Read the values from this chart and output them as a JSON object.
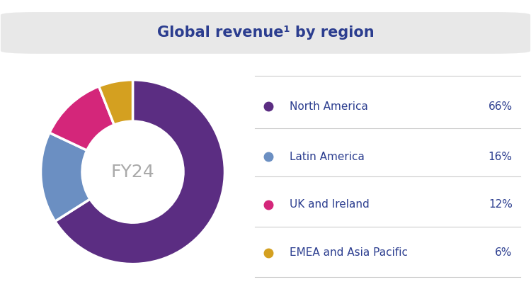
{
  "title": "Global revenue¹ by region",
  "center_label": "FY24",
  "slices": [
    66,
    16,
    12,
    6
  ],
  "labels": [
    "North America",
    "Latin America",
    "UK and Ireland",
    "EMEA and Asia Pacific"
  ],
  "percentages": [
    "66%",
    "16%",
    "12%",
    "6%"
  ],
  "colors": [
    "#5b2d82",
    "#6b8fc2",
    "#d4267a",
    "#d4a020"
  ],
  "background_color": "#ffffff",
  "title_bg_color": "#e8e8e8",
  "title_color": "#2b3d8f",
  "legend_text_color": "#2b3d8f",
  "center_text_color": "#aaaaaa",
  "donut_width": 0.45,
  "startangle": 90,
  "figsize": [
    7.5,
    4.22
  ],
  "dpi": 100
}
